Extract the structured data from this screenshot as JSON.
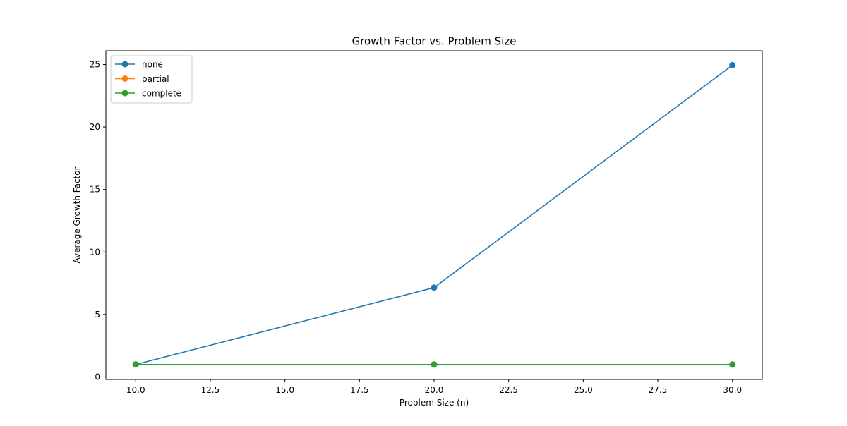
{
  "chart_data": {
    "type": "line",
    "title": "Growth Factor vs. Problem Size",
    "xlabel": "Problem Size (n)",
    "ylabel": "Average Growth Factor",
    "xlim": [
      9.0,
      31.0
    ],
    "ylim": [
      -0.2,
      26.1
    ],
    "xticks": [
      10.0,
      12.5,
      15.0,
      17.5,
      20.0,
      22.5,
      25.0,
      27.5,
      30.0
    ],
    "xtick_labels": [
      "10.0",
      "12.5",
      "15.0",
      "17.5",
      "20.0",
      "22.5",
      "25.0",
      "27.5",
      "30.0"
    ],
    "yticks": [
      0,
      5,
      10,
      15,
      20,
      25
    ],
    "ytick_labels": [
      "0",
      "5",
      "10",
      "15",
      "20",
      "25"
    ],
    "grid": false,
    "legend_position": "top-left",
    "x": [
      10,
      20,
      30
    ],
    "series": [
      {
        "name": "none",
        "values": [
          1.0,
          7.15,
          24.95
        ],
        "color": "#1f77b4"
      },
      {
        "name": "partial",
        "values": [
          1.0,
          1.0,
          1.0
        ],
        "color": "#ff7f0e"
      },
      {
        "name": "complete",
        "values": [
          1.0,
          1.0,
          1.0
        ],
        "color": "#2ca02c"
      }
    ]
  }
}
